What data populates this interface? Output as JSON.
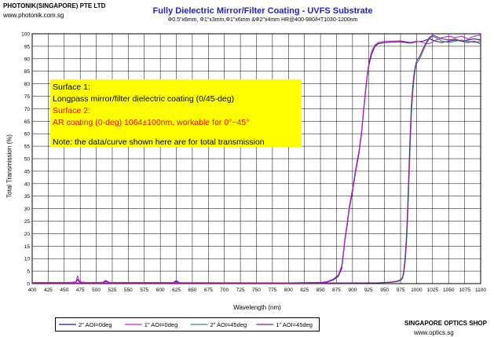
{
  "header": {
    "company": "PHOTONIK(SINGAPORE) PTE LTD",
    "url_left": "www.photonik.com.sg"
  },
  "footer": {
    "brand": "SINGAPORE OPTICS SHOP",
    "url_right": "www.optics.sg"
  },
  "annotation": {
    "line1": "Surface 1:",
    "line2": "Longpass  mirror/filter dielectric coating (0/45-deg)",
    "line3": "Surface 2:",
    "line4": "AR coating (0-deg) 1064±100nm, workable for 0°~45°",
    "line5": "",
    "line6": "Note: the data/curve  shown here are for total transmission",
    "highlight_color": "#ffff00",
    "surface2_color": "#ff0000"
  },
  "chart_data": {
    "type": "line",
    "title": "Fully Dielectric Mirror/Filter Coating  - UVFS Substrate",
    "subtitle": "Φ0.5\"x6mm,  Φ1\"x3mm,Φ1\"x6mm  &Φ2\"x4mm  HR@400-980/HT1030-1200nm",
    "xlabel": "Wavelength (nm)",
    "ylabel": "Total Transmission (%)",
    "xlim": [
      400,
      1100
    ],
    "ylim": [
      0,
      100
    ],
    "xticks": [
      400,
      425,
      450,
      475,
      500,
      525,
      550,
      575,
      600,
      625,
      650,
      675,
      700,
      725,
      750,
      775,
      800,
      825,
      850,
      875,
      900,
      925,
      950,
      975,
      1000,
      1025,
      1050,
      1075,
      1100
    ],
    "yticks": [
      0,
      5,
      10,
      15,
      20,
      25,
      30,
      35,
      40,
      45,
      50,
      55,
      60,
      65,
      70,
      75,
      80,
      85,
      90,
      95,
      100
    ],
    "grid": true,
    "legend_position": "bottom",
    "series": [
      {
        "name": "2\" AOI=0deg",
        "color": "#1a1a8c",
        "points": [
          [
            400,
            0.3
          ],
          [
            460,
            0.4
          ],
          [
            468,
            0.6
          ],
          [
            471,
            1.6
          ],
          [
            474,
            0.6
          ],
          [
            485,
            0.3
          ],
          [
            510,
            0.4
          ],
          [
            515,
            0.9
          ],
          [
            520,
            0.4
          ],
          [
            620,
            0.3
          ],
          [
            625,
            0.8
          ],
          [
            630,
            0.3
          ],
          [
            800,
            0.2
          ],
          [
            850,
            0.4
          ],
          [
            860,
            0.6
          ],
          [
            870,
            1.5
          ],
          [
            878,
            3
          ],
          [
            883,
            6
          ],
          [
            885,
            10
          ],
          [
            888,
            17
          ],
          [
            892,
            24
          ],
          [
            895,
            30
          ],
          [
            900,
            37
          ],
          [
            905,
            45
          ],
          [
            910,
            52
          ],
          [
            914,
            60
          ],
          [
            917,
            68
          ],
          [
            920,
            76
          ],
          [
            923,
            83
          ],
          [
            926,
            88
          ],
          [
            930,
            92
          ],
          [
            935,
            95
          ],
          [
            940,
            96
          ],
          [
            950,
            96.5
          ],
          [
            975,
            96.8
          ],
          [
            990,
            96.3
          ],
          [
            1000,
            96.8
          ],
          [
            1010,
            97
          ],
          [
            1015,
            97.5
          ],
          [
            1020,
            98
          ],
          [
            1030,
            97
          ],
          [
            1040,
            96.5
          ],
          [
            1050,
            97
          ],
          [
            1060,
            97.5
          ],
          [
            1070,
            97
          ],
          [
            1080,
            97.5
          ],
          [
            1090,
            98
          ],
          [
            1100,
            97.5
          ]
        ]
      },
      {
        "name": "1\" AOI=0deg",
        "color": "#cc22cc",
        "points": [
          [
            400,
            0.4
          ],
          [
            460,
            0.5
          ],
          [
            468,
            0.7
          ],
          [
            471,
            3
          ],
          [
            474,
            0.8
          ],
          [
            485,
            0.4
          ],
          [
            510,
            0.5
          ],
          [
            515,
            1.3
          ],
          [
            520,
            0.5
          ],
          [
            620,
            0.4
          ],
          [
            625,
            1.3
          ],
          [
            630,
            0.4
          ],
          [
            800,
            0.3
          ],
          [
            850,
            0.5
          ],
          [
            860,
            0.8
          ],
          [
            870,
            1.8
          ],
          [
            878,
            3.5
          ],
          [
            883,
            7
          ],
          [
            885,
            11
          ],
          [
            888,
            18
          ],
          [
            892,
            25
          ],
          [
            895,
            31
          ],
          [
            900,
            38
          ],
          [
            905,
            46
          ],
          [
            910,
            53
          ],
          [
            914,
            61
          ],
          [
            917,
            69
          ],
          [
            920,
            77
          ],
          [
            923,
            84
          ],
          [
            926,
            89
          ],
          [
            930,
            93
          ],
          [
            935,
            95.5
          ],
          [
            940,
            96.5
          ],
          [
            950,
            97
          ],
          [
            975,
            97.2
          ],
          [
            990,
            96.5
          ],
          [
            1000,
            97
          ],
          [
            1010,
            96.5
          ],
          [
            1015,
            96
          ],
          [
            1020,
            96
          ],
          [
            1030,
            97.5
          ],
          [
            1040,
            98.5
          ],
          [
            1050,
            99
          ],
          [
            1060,
            98.5
          ],
          [
            1070,
            99
          ],
          [
            1080,
            98
          ],
          [
            1090,
            99
          ],
          [
            1100,
            99.5
          ]
        ]
      },
      {
        "name": "2\" AOI=45deg",
        "color": "#2a8a8a",
        "points": [
          [
            400,
            0.3
          ],
          [
            800,
            0.2
          ],
          [
            940,
            0.3
          ],
          [
            960,
            0.5
          ],
          [
            970,
            0.8
          ],
          [
            975,
            1.2
          ],
          [
            978,
            2
          ],
          [
            980,
            4
          ],
          [
            982,
            8
          ],
          [
            984,
            15
          ],
          [
            986,
            25
          ],
          [
            988,
            40
          ],
          [
            990,
            55
          ],
          [
            992,
            68
          ],
          [
            994,
            76
          ],
          [
            996,
            82
          ],
          [
            998,
            86
          ],
          [
            1000,
            88
          ],
          [
            1005,
            90
          ],
          [
            1010,
            93
          ],
          [
            1015,
            96
          ],
          [
            1020,
            98
          ],
          [
            1025,
            99
          ],
          [
            1030,
            98.5
          ],
          [
            1040,
            97
          ],
          [
            1050,
            96.5
          ],
          [
            1060,
            97
          ],
          [
            1070,
            97.5
          ],
          [
            1080,
            97
          ],
          [
            1090,
            96.5
          ],
          [
            1100,
            97
          ]
        ]
      },
      {
        "name": "1\" AOI=45deg",
        "color": "#8b1a8b",
        "points": [
          [
            400,
            0.2
          ],
          [
            800,
            0.2
          ],
          [
            940,
            0.3
          ],
          [
            960,
            0.6
          ],
          [
            970,
            1
          ],
          [
            975,
            1.5
          ],
          [
            978,
            2.5
          ],
          [
            980,
            5
          ],
          [
            982,
            10
          ],
          [
            984,
            18
          ],
          [
            986,
            30
          ],
          [
            988,
            45
          ],
          [
            990,
            60
          ],
          [
            992,
            72
          ],
          [
            994,
            79
          ],
          [
            996,
            84
          ],
          [
            998,
            87
          ],
          [
            1000,
            89
          ],
          [
            1005,
            91
          ],
          [
            1010,
            94
          ],
          [
            1015,
            96.5
          ],
          [
            1020,
            98.5
          ],
          [
            1025,
            99.5
          ],
          [
            1030,
            99
          ],
          [
            1040,
            98
          ],
          [
            1050,
            97.5
          ],
          [
            1060,
            98
          ],
          [
            1070,
            97
          ],
          [
            1080,
            96.5
          ],
          [
            1090,
            97
          ],
          [
            1100,
            96
          ]
        ]
      }
    ]
  }
}
